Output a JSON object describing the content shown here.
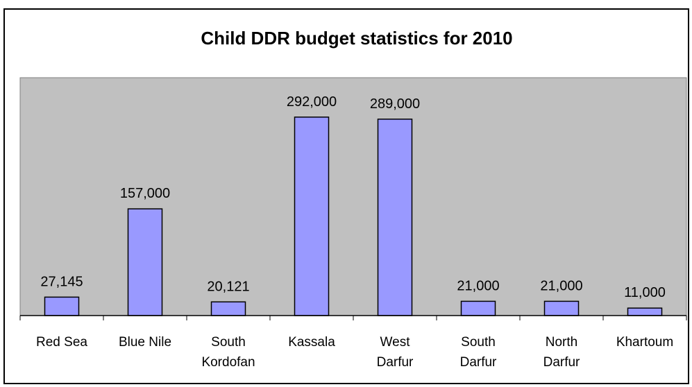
{
  "chart_data": {
    "type": "bar",
    "title": "Child DDR budget statistics for 2010",
    "categories": [
      [
        "Red Sea"
      ],
      [
        "Blue Nile"
      ],
      [
        "South",
        "Kordofan"
      ],
      [
        "Kassala"
      ],
      [
        "West",
        "Darfur"
      ],
      [
        "South",
        "Darfur"
      ],
      [
        "North",
        "Darfur"
      ],
      [
        "Khartoum"
      ]
    ],
    "values": [
      27145,
      157000,
      20121,
      292000,
      289000,
      21000,
      21000,
      11000
    ],
    "value_labels": [
      "27,145",
      "157,000",
      "20,121",
      "292,000",
      "289,000",
      "21,000",
      "21,000",
      "11,000"
    ],
    "ylim": [
      0,
      350000
    ],
    "grid": false,
    "legend": "none",
    "colors": {
      "bar_fill": "#9999ff",
      "bar_stroke": "#000000",
      "plot_background": "#c0c0c0"
    }
  }
}
